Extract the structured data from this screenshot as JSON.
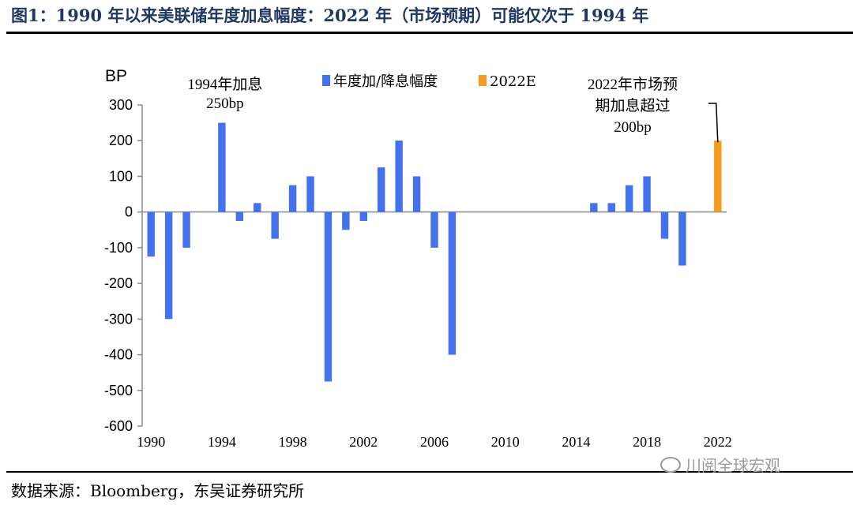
{
  "page": {
    "title": "图1：1990 年以来美联储年度加息幅度：2022 年（市场预期）可能仅次于 1994 年",
    "source": "数据来源：Bloomberg，东吴证券研究所",
    "watermark": "川阅全球宏观",
    "watermark_icon": "wechat-icon"
  },
  "chart_data": {
    "type": "bar",
    "ylabel": "BP",
    "ylim": [
      -600,
      300
    ],
    "yticks": [
      300,
      200,
      100,
      0,
      -100,
      -200,
      -300,
      -400,
      -500,
      -600
    ],
    "ytick_labels": [
      "300",
      "200",
      "100",
      "0",
      "-100",
      "-200",
      "-300",
      "-400",
      "-500",
      "-600"
    ],
    "xlim": [
      1990,
      2022
    ],
    "xticks": [
      1990,
      1994,
      1998,
      2002,
      2006,
      2010,
      2014,
      2018,
      2022
    ],
    "xtick_labels": [
      "1990",
      "1994",
      "1998",
      "2002",
      "2006",
      "2010",
      "2014",
      "2018",
      "2022"
    ],
    "grid": false,
    "legend_position": "top-center",
    "series": [
      {
        "name": "年度加/降息幅度",
        "color": "#4472ee",
        "x": [
          1990,
          1991,
          1992,
          1993,
          1994,
          1995,
          1996,
          1997,
          1998,
          1999,
          2000,
          2001,
          2002,
          2003,
          2004,
          2005,
          2006,
          2007,
          2008,
          2009,
          2010,
          2011,
          2012,
          2013,
          2014,
          2015,
          2016,
          2017,
          2018,
          2019,
          2020,
          2021
        ],
        "values": [
          -125,
          -300,
          -100,
          0,
          250,
          -25,
          25,
          -75,
          75,
          100,
          -475,
          -50,
          -25,
          125,
          200,
          100,
          -100,
          -400,
          0,
          0,
          0,
          0,
          0,
          0,
          0,
          25,
          25,
          75,
          100,
          -75,
          -150,
          0
        ]
      },
      {
        "name": "2022E",
        "color": "#f59b1f",
        "x": [
          2022
        ],
        "values": [
          200
        ]
      }
    ],
    "annotations": [
      {
        "text": "1994年加息\n250bp",
        "x": 1994,
        "y": 250
      },
      {
        "text": "2022年市场预\n期加息超过\n200bp",
        "x": 2022,
        "y": 200
      }
    ]
  }
}
